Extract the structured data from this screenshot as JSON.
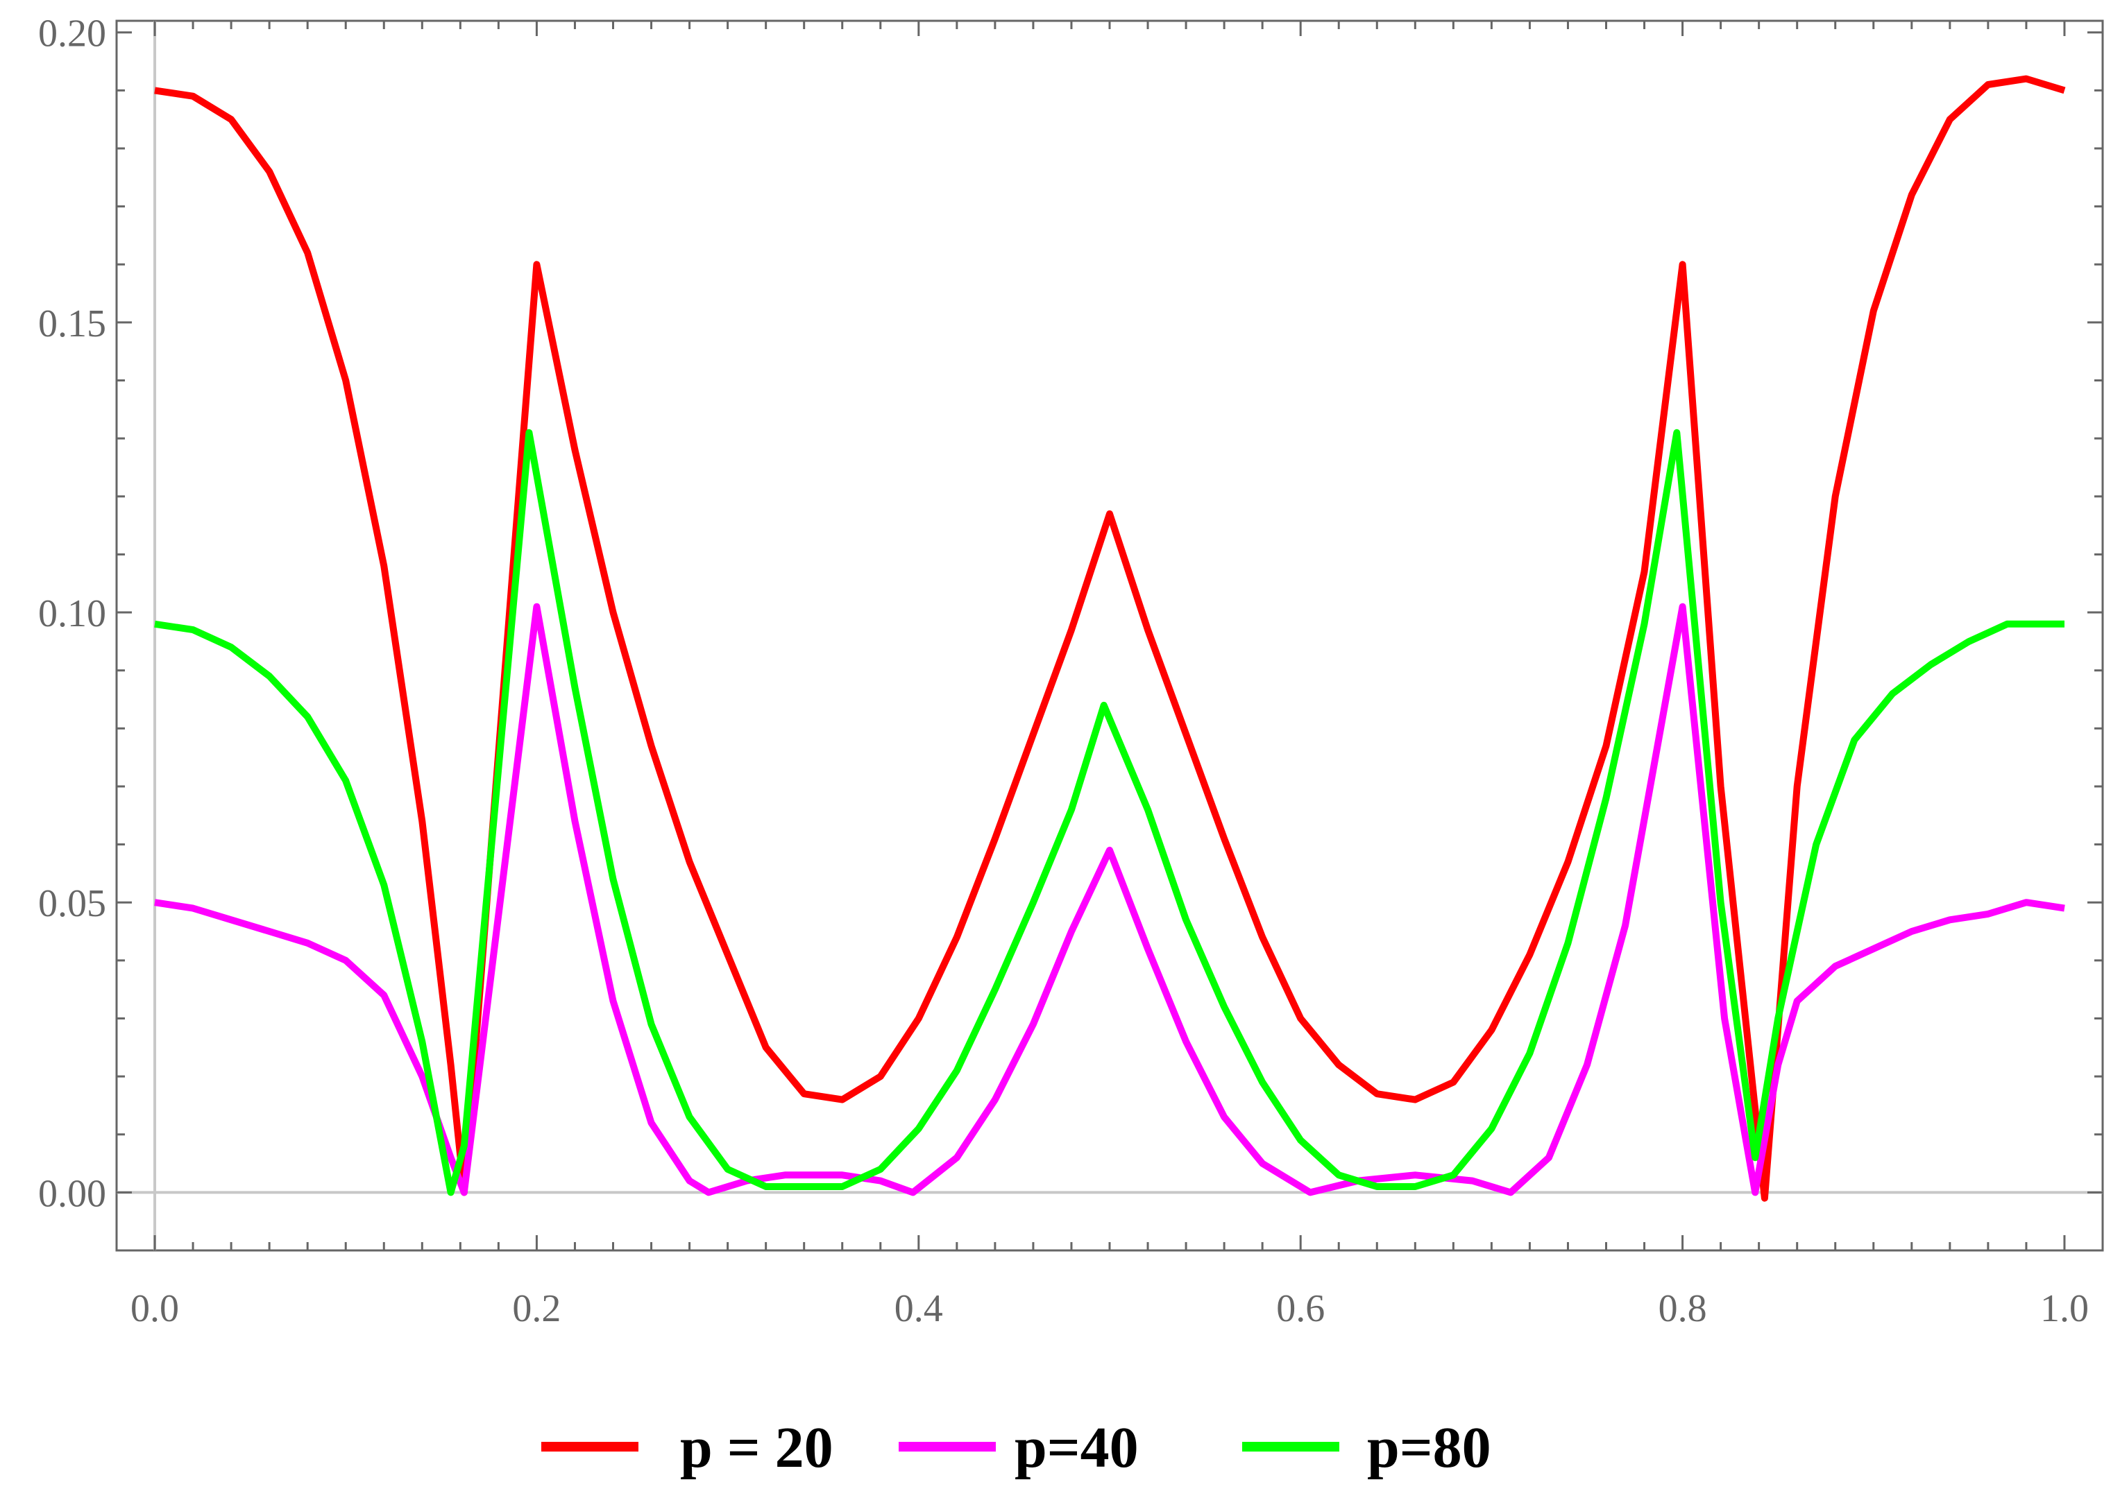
{
  "chart_data": {
    "type": "line",
    "title": "",
    "xlabel": "",
    "ylabel": "",
    "xlim": [
      -0.02,
      1.02
    ],
    "ylim": [
      -0.01,
      0.202
    ],
    "grid": false,
    "legend_placement": "bottom",
    "x_ticks": [
      "0.0",
      "0.2",
      "0.4",
      "0.6",
      "0.8",
      "1.0"
    ],
    "y_ticks": [
      "0.00",
      "0.05",
      "0.10",
      "0.15",
      "0.20"
    ],
    "series": [
      {
        "name": "p = 20",
        "color": "#ff0000",
        "points": [
          [
            0.0,
            0.19
          ],
          [
            0.02,
            0.189
          ],
          [
            0.04,
            0.185
          ],
          [
            0.06,
            0.176
          ],
          [
            0.08,
            0.162
          ],
          [
            0.1,
            0.14
          ],
          [
            0.12,
            0.108
          ],
          [
            0.14,
            0.064
          ],
          [
            0.155,
            0.022
          ],
          [
            0.162,
            0.0
          ],
          [
            0.2,
            0.16
          ],
          [
            0.22,
            0.128
          ],
          [
            0.24,
            0.1
          ],
          [
            0.26,
            0.077
          ],
          [
            0.28,
            0.057
          ],
          [
            0.3,
            0.041
          ],
          [
            0.32,
            0.025
          ],
          [
            0.34,
            0.017
          ],
          [
            0.36,
            0.016
          ],
          [
            0.38,
            0.02
          ],
          [
            0.4,
            0.03
          ],
          [
            0.42,
            0.044
          ],
          [
            0.44,
            0.061
          ],
          [
            0.46,
            0.079
          ],
          [
            0.48,
            0.097
          ],
          [
            0.5,
            0.117
          ],
          [
            0.52,
            0.097
          ],
          [
            0.54,
            0.079
          ],
          [
            0.56,
            0.061
          ],
          [
            0.58,
            0.044
          ],
          [
            0.6,
            0.03
          ],
          [
            0.62,
            0.022
          ],
          [
            0.64,
            0.017
          ],
          [
            0.66,
            0.016
          ],
          [
            0.68,
            0.019
          ],
          [
            0.7,
            0.028
          ],
          [
            0.72,
            0.041
          ],
          [
            0.74,
            0.057
          ],
          [
            0.76,
            0.077
          ],
          [
            0.78,
            0.107
          ],
          [
            0.8,
            0.16
          ],
          [
            0.82,
            0.07
          ],
          [
            0.843,
            -0.001
          ],
          [
            0.86,
            0.07
          ],
          [
            0.88,
            0.12
          ],
          [
            0.9,
            0.152
          ],
          [
            0.92,
            0.172
          ],
          [
            0.94,
            0.185
          ],
          [
            0.96,
            0.191
          ],
          [
            0.98,
            0.192
          ],
          [
            1.0,
            0.19
          ]
        ]
      },
      {
        "name": "p=40",
        "color": "#ff00ff",
        "points": [
          [
            0.0,
            0.05
          ],
          [
            0.02,
            0.049
          ],
          [
            0.04,
            0.047
          ],
          [
            0.06,
            0.045
          ],
          [
            0.08,
            0.043
          ],
          [
            0.1,
            0.04
          ],
          [
            0.12,
            0.034
          ],
          [
            0.14,
            0.02
          ],
          [
            0.155,
            0.006
          ],
          [
            0.162,
            0.0
          ],
          [
            0.2,
            0.101
          ],
          [
            0.22,
            0.064
          ],
          [
            0.24,
            0.033
          ],
          [
            0.26,
            0.012
          ],
          [
            0.28,
            0.002
          ],
          [
            0.29,
            0.0
          ],
          [
            0.31,
            0.002
          ],
          [
            0.33,
            0.003
          ],
          [
            0.36,
            0.003
          ],
          [
            0.38,
            0.002
          ],
          [
            0.397,
            0.0
          ],
          [
            0.42,
            0.006
          ],
          [
            0.44,
            0.016
          ],
          [
            0.46,
            0.029
          ],
          [
            0.48,
            0.045
          ],
          [
            0.5,
            0.059
          ],
          [
            0.52,
            0.042
          ],
          [
            0.54,
            0.026
          ],
          [
            0.56,
            0.013
          ],
          [
            0.58,
            0.005
          ],
          [
            0.605,
            0.0
          ],
          [
            0.63,
            0.002
          ],
          [
            0.66,
            0.003
          ],
          [
            0.69,
            0.002
          ],
          [
            0.71,
            0.0
          ],
          [
            0.73,
            0.006
          ],
          [
            0.75,
            0.022
          ],
          [
            0.77,
            0.046
          ],
          [
            0.8,
            0.101
          ],
          [
            0.822,
            0.03
          ],
          [
            0.838,
            0.0
          ],
          [
            0.85,
            0.022
          ],
          [
            0.86,
            0.033
          ],
          [
            0.88,
            0.039
          ],
          [
            0.9,
            0.042
          ],
          [
            0.92,
            0.045
          ],
          [
            0.94,
            0.047
          ],
          [
            0.96,
            0.048
          ],
          [
            0.98,
            0.05
          ],
          [
            1.0,
            0.049
          ]
        ]
      },
      {
        "name": "p=80",
        "color": "#00ff00",
        "points": [
          [
            0.0,
            0.098
          ],
          [
            0.02,
            0.097
          ],
          [
            0.04,
            0.094
          ],
          [
            0.06,
            0.089
          ],
          [
            0.08,
            0.082
          ],
          [
            0.1,
            0.071
          ],
          [
            0.12,
            0.053
          ],
          [
            0.14,
            0.026
          ],
          [
            0.155,
            0.0
          ],
          [
            0.162,
            0.008
          ],
          [
            0.196,
            0.131
          ],
          [
            0.22,
            0.087
          ],
          [
            0.24,
            0.054
          ],
          [
            0.26,
            0.029
          ],
          [
            0.28,
            0.013
          ],
          [
            0.3,
            0.004
          ],
          [
            0.32,
            0.001
          ],
          [
            0.34,
            0.001
          ],
          [
            0.36,
            0.001
          ],
          [
            0.38,
            0.004
          ],
          [
            0.4,
            0.011
          ],
          [
            0.42,
            0.021
          ],
          [
            0.44,
            0.035
          ],
          [
            0.46,
            0.05
          ],
          [
            0.48,
            0.066
          ],
          [
            0.497,
            0.084
          ],
          [
            0.52,
            0.066
          ],
          [
            0.54,
            0.047
          ],
          [
            0.56,
            0.032
          ],
          [
            0.58,
            0.019
          ],
          [
            0.6,
            0.009
          ],
          [
            0.62,
            0.003
          ],
          [
            0.64,
            0.001
          ],
          [
            0.66,
            0.001
          ],
          [
            0.68,
            0.003
          ],
          [
            0.7,
            0.011
          ],
          [
            0.72,
            0.024
          ],
          [
            0.74,
            0.043
          ],
          [
            0.76,
            0.068
          ],
          [
            0.78,
            0.098
          ],
          [
            0.797,
            0.131
          ],
          [
            0.82,
            0.05
          ],
          [
            0.838,
            0.006
          ],
          [
            0.85,
            0.03
          ],
          [
            0.87,
            0.06
          ],
          [
            0.89,
            0.078
          ],
          [
            0.91,
            0.086
          ],
          [
            0.93,
            0.091
          ],
          [
            0.95,
            0.095
          ],
          [
            0.97,
            0.098
          ],
          [
            0.99,
            0.098
          ],
          [
            1.0,
            0.098
          ]
        ]
      }
    ]
  },
  "legend": {
    "items": [
      {
        "prefix": "p",
        "label": " = 20",
        "color": "#ff0000"
      },
      {
        "prefix": "",
        "label": "p=40",
        "color": "#ff00ff"
      },
      {
        "prefix": "",
        "label": "p=80",
        "color": "#00ff00"
      }
    ]
  }
}
